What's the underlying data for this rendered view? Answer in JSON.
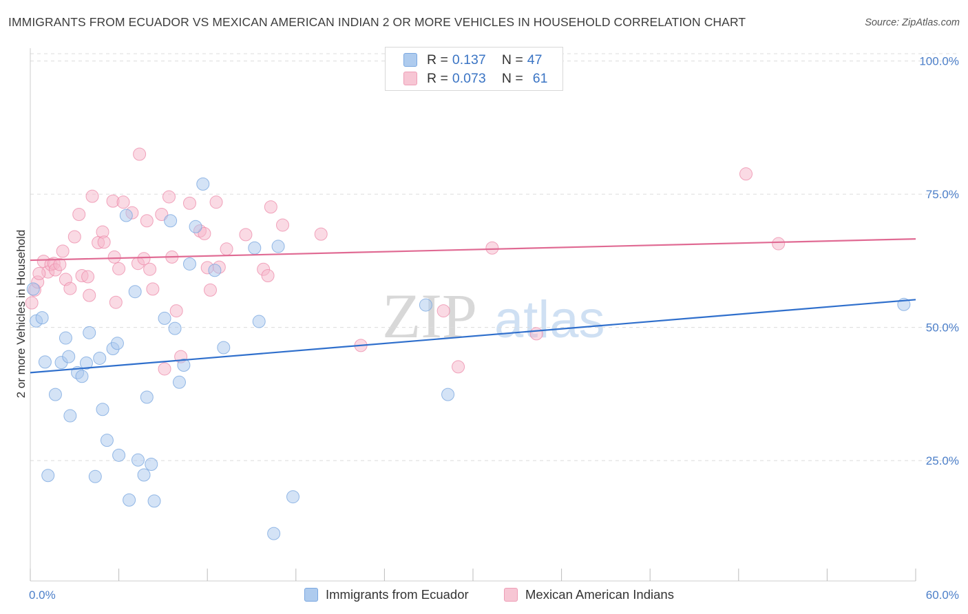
{
  "title": "IMMIGRANTS FROM ECUADOR VS MEXICAN AMERICAN INDIAN 2 OR MORE VEHICLES IN HOUSEHOLD CORRELATION CHART",
  "source": "Source: ZipAtlas.com",
  "watermark": {
    "zip": "ZIP",
    "atlas": "atlas"
  },
  "legend_top": [
    {
      "r_label": "R =",
      "r_value": "0.137",
      "n_label": "N =",
      "n_value": "47",
      "color": "#aecbee"
    },
    {
      "r_label": "R =",
      "r_value": "0.073",
      "n_label": "N =",
      "n_value": "61",
      "color": "#f7b9cb"
    }
  ],
  "legend_bottom": [
    {
      "label": "Immigrants from Ecuador",
      "color": "#aecbee"
    },
    {
      "label": "Mexican American Indians",
      "color": "#f7b9cb"
    }
  ],
  "colors": {
    "blue_fill": "#a9c8ee",
    "blue_stroke": "#7aa7e0",
    "blue_line": "#2f6fcc",
    "pink_fill": "#f6b6c9",
    "pink_stroke": "#ee8fac",
    "pink_line": "#e06a93",
    "axis_text": "#4c7fc9",
    "grid": "#dcdcdc"
  },
  "chart_data": {
    "type": "scatter",
    "title": "IMMIGRANTS FROM ECUADOR VS MEXICAN AMERICAN INDIAN 2 OR MORE VEHICLES IN HOUSEHOLD CORRELATION CHART",
    "xlabel": "",
    "ylabel": "2 or more Vehicles in Household",
    "xlim": [
      0,
      60
    ],
    "ylim": [
      2.4,
      102.4
    ],
    "x_tick_labels": [
      "0.0%",
      "60.0%"
    ],
    "y_ticks": [
      25,
      50,
      75,
      100
    ],
    "y_tick_labels": [
      "25.0%",
      "50.0%",
      "75.0%",
      "100.0%"
    ],
    "grid": "horizontal dashed",
    "legend_position": "top-center",
    "series": [
      {
        "name": "Immigrants from Ecuador",
        "r": 0.137,
        "n": 47,
        "trend": {
          "x": [
            0,
            60
          ],
          "y": [
            41.5,
            55.2
          ]
        },
        "points": [
          [
            0.2,
            57.2
          ],
          [
            0.4,
            51.2
          ],
          [
            0.8,
            51.8
          ],
          [
            1.0,
            43.5
          ],
          [
            1.2,
            22.2
          ],
          [
            1.7,
            37.4
          ],
          [
            2.1,
            43.4
          ],
          [
            2.4,
            48.0
          ],
          [
            2.6,
            44.5
          ],
          [
            2.7,
            33.4
          ],
          [
            3.2,
            41.5
          ],
          [
            3.5,
            40.8
          ],
          [
            3.8,
            43.3
          ],
          [
            4.0,
            49.0
          ],
          [
            4.4,
            22.0
          ],
          [
            4.7,
            44.2
          ],
          [
            4.9,
            34.6
          ],
          [
            5.2,
            28.8
          ],
          [
            5.6,
            46.0
          ],
          [
            5.9,
            47.0
          ],
          [
            6.0,
            26.0
          ],
          [
            6.5,
            71.0
          ],
          [
            6.7,
            17.6
          ],
          [
            7.1,
            56.7
          ],
          [
            7.3,
            25.1
          ],
          [
            7.7,
            22.3
          ],
          [
            7.9,
            36.9
          ],
          [
            8.2,
            24.3
          ],
          [
            8.4,
            17.4
          ],
          [
            9.1,
            51.7
          ],
          [
            9.5,
            70.0
          ],
          [
            9.8,
            49.8
          ],
          [
            10.1,
            39.7
          ],
          [
            10.4,
            42.9
          ],
          [
            10.8,
            61.9
          ],
          [
            11.2,
            68.9
          ],
          [
            11.7,
            76.9
          ],
          [
            12.5,
            60.7
          ],
          [
            13.1,
            46.2
          ],
          [
            15.2,
            64.9
          ],
          [
            15.5,
            51.1
          ],
          [
            16.5,
            11.3
          ],
          [
            16.8,
            65.2
          ],
          [
            17.8,
            18.2
          ],
          [
            26.8,
            54.2
          ],
          [
            28.3,
            37.4
          ],
          [
            59.2,
            54.3
          ]
        ]
      },
      {
        "name": "Mexican American Indians",
        "r": 0.073,
        "n": 61,
        "trend": {
          "x": [
            0,
            60
          ],
          "y": [
            62.6,
            66.6
          ]
        },
        "points": [
          [
            0.1,
            54.6
          ],
          [
            0.3,
            57.0
          ],
          [
            0.5,
            58.5
          ],
          [
            0.9,
            62.4
          ],
          [
            1.2,
            60.4
          ],
          [
            1.4,
            61.8
          ],
          [
            1.6,
            62.0
          ],
          [
            1.7,
            60.8
          ],
          [
            2.0,
            61.8
          ],
          [
            2.2,
            64.3
          ],
          [
            2.4,
            59.0
          ],
          [
            2.7,
            57.3
          ],
          [
            3.0,
            67.0
          ],
          [
            3.3,
            71.2
          ],
          [
            3.5,
            59.7
          ],
          [
            3.9,
            59.5
          ],
          [
            4.0,
            56.0
          ],
          [
            4.2,
            74.6
          ],
          [
            4.6,
            65.9
          ],
          [
            4.9,
            67.9
          ],
          [
            5.0,
            66.0
          ],
          [
            5.6,
            73.7
          ],
          [
            5.7,
            63.2
          ],
          [
            5.8,
            54.7
          ],
          [
            6.0,
            61.0
          ],
          [
            6.3,
            73.5
          ],
          [
            6.9,
            71.5
          ],
          [
            7.3,
            62.0
          ],
          [
            7.4,
            82.5
          ],
          [
            7.7,
            62.9
          ],
          [
            7.9,
            70.0
          ],
          [
            8.1,
            60.9
          ],
          [
            8.3,
            57.2
          ],
          [
            8.9,
            71.2
          ],
          [
            9.1,
            42.2
          ],
          [
            9.4,
            74.5
          ],
          [
            9.6,
            63.2
          ],
          [
            9.9,
            53.1
          ],
          [
            10.2,
            44.5
          ],
          [
            10.8,
            73.3
          ],
          [
            11.5,
            68.1
          ],
          [
            11.8,
            67.6
          ],
          [
            12.0,
            61.2
          ],
          [
            12.2,
            57.0
          ],
          [
            12.6,
            73.5
          ],
          [
            12.8,
            61.3
          ],
          [
            13.3,
            64.7
          ],
          [
            14.6,
            67.4
          ],
          [
            15.8,
            60.9
          ],
          [
            16.1,
            59.7
          ],
          [
            16.3,
            72.6
          ],
          [
            17.1,
            69.2
          ],
          [
            19.7,
            67.5
          ],
          [
            22.4,
            46.6
          ],
          [
            28.0,
            53.1
          ],
          [
            29.0,
            42.6
          ],
          [
            31.3,
            64.9
          ],
          [
            34.3,
            48.8
          ],
          [
            48.5,
            78.8
          ],
          [
            50.7,
            65.7
          ],
          [
            0.6,
            60.1
          ]
        ]
      }
    ]
  }
}
